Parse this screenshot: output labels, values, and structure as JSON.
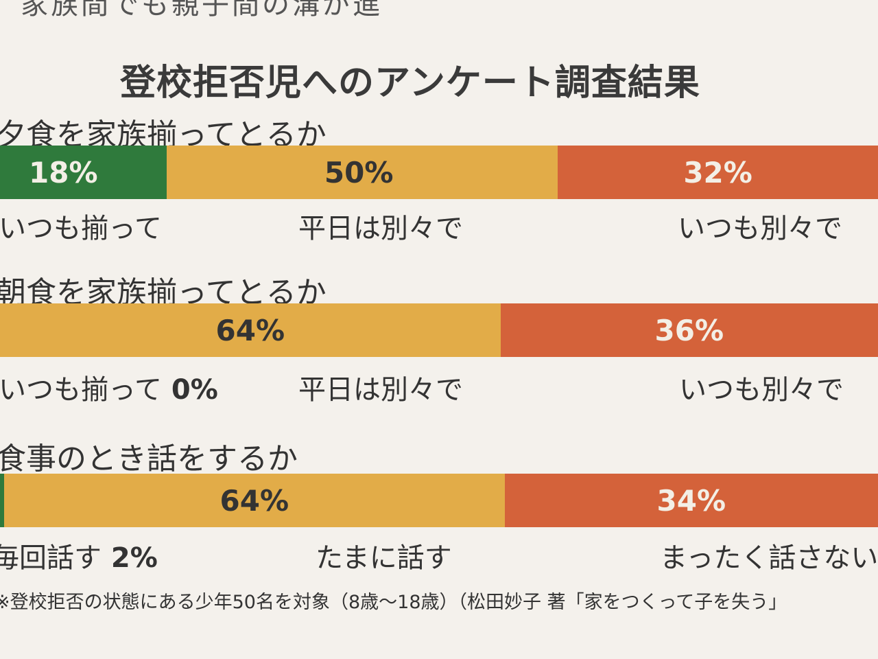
{
  "cut_top_text": "家族間でも親子間の溝が進",
  "chart_data": {
    "type": "bar",
    "orientation": "horizontal-stacked",
    "title": "登校拒否児へのアンケート調査結果",
    "unit": "%",
    "colors": {
      "green": "#2f7a3c",
      "yellow": "#e2ac48",
      "red": "#d4623a"
    },
    "charts": [
      {
        "question": "夕食を家族揃ってとるか",
        "segments": [
          {
            "label": "いつも揃って",
            "value": 18,
            "value_label": "18%",
            "color": "green",
            "text": "light"
          },
          {
            "label": "平日は別々で",
            "value": 50,
            "value_label": "50%",
            "color": "yellow",
            "text": "dark"
          },
          {
            "label": "いつも別々で",
            "value": 32,
            "value_label": "32%",
            "color": "red",
            "text": "light"
          }
        ]
      },
      {
        "question": "朝食を家族揃ってとるか",
        "segments": [
          {
            "label": "いつも揃って",
            "value": 0,
            "value_label": "0%",
            "color": "green",
            "text": "light"
          },
          {
            "label": "平日は別々で",
            "value": 64,
            "value_label": "64%",
            "color": "yellow",
            "text": "dark"
          },
          {
            "label": "いつも別々で",
            "value": 36,
            "value_label": "36%",
            "color": "red",
            "text": "light"
          }
        ]
      },
      {
        "question": "食事のとき話をするか",
        "segments": [
          {
            "label": "毎回話す",
            "value": 2,
            "value_label": "2%",
            "color": "green",
            "text": "light"
          },
          {
            "label": "たまに話す",
            "value": 64,
            "value_label": "64%",
            "color": "yellow",
            "text": "dark"
          },
          {
            "label": "まったく話さない",
            "value": 34,
            "value_label": "34%",
            "color": "red",
            "text": "light"
          }
        ]
      }
    ]
  },
  "footnote": "※登校拒否の状態にある少年50名を対象（8歳〜18歳）（松田妙子 著「家をつくって子を失う」"
}
